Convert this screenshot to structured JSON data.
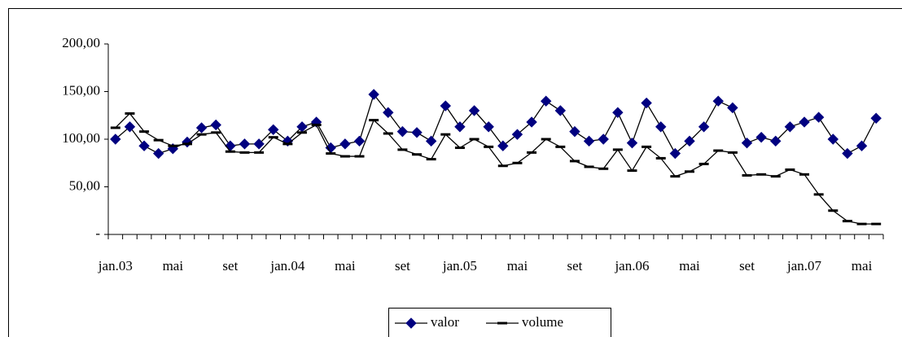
{
  "chart_data": {
    "type": "line",
    "categories": [
      "jan.03",
      null,
      null,
      null,
      "mai",
      null,
      null,
      null,
      "set",
      null,
      null,
      null,
      "jan.04",
      null,
      null,
      null,
      "mai",
      null,
      null,
      null,
      "set",
      null,
      null,
      null,
      "jan.05",
      null,
      null,
      null,
      "mai",
      null,
      null,
      null,
      "set",
      null,
      null,
      null,
      "jan.06",
      null,
      null,
      null,
      "mai",
      null,
      null,
      null,
      "set",
      null,
      null,
      null,
      "jan.07",
      null,
      null,
      null,
      "mai",
      null
    ],
    "series": [
      {
        "name": "valor",
        "color": "#000080",
        "marker": "diamond",
        "values": [
          100,
          113,
          93,
          85,
          90,
          97,
          112,
          115,
          93,
          95,
          95,
          110,
          98,
          113,
          118,
          91,
          95,
          98,
          147,
          128,
          108,
          107,
          98,
          135,
          113,
          130,
          113,
          93,
          105,
          118,
          140,
          130,
          108,
          98,
          100,
          128,
          96,
          138,
          113,
          85,
          98,
          113,
          140,
          133,
          96,
          102,
          98,
          113,
          118,
          123,
          100,
          85,
          93,
          122
        ]
      },
      {
        "name": "volume",
        "color": "#000000",
        "marker": "dash",
        "values": [
          112,
          127,
          108,
          99,
          93,
          95,
          105,
          107,
          87,
          86,
          86,
          102,
          95,
          107,
          115,
          85,
          82,
          82,
          120,
          106,
          89,
          84,
          79,
          105,
          91,
          100,
          92,
          72,
          75,
          86,
          100,
          92,
          77,
          71,
          69,
          89,
          67,
          92,
          80,
          61,
          66,
          74,
          88,
          86,
          62,
          63,
          61,
          68,
          63,
          42,
          25,
          14,
          11,
          11
        ]
      }
    ],
    "ylim": [
      0,
      200
    ],
    "yticks": [
      {
        "value": 0,
        "label": "-"
      },
      {
        "value": 50,
        "label": "50,00"
      },
      {
        "value": 100,
        "label": "100,00"
      },
      {
        "value": 150,
        "label": "150,00"
      },
      {
        "value": 200,
        "label": "200,00"
      }
    ],
    "grid": false,
    "legend": "bottom"
  }
}
